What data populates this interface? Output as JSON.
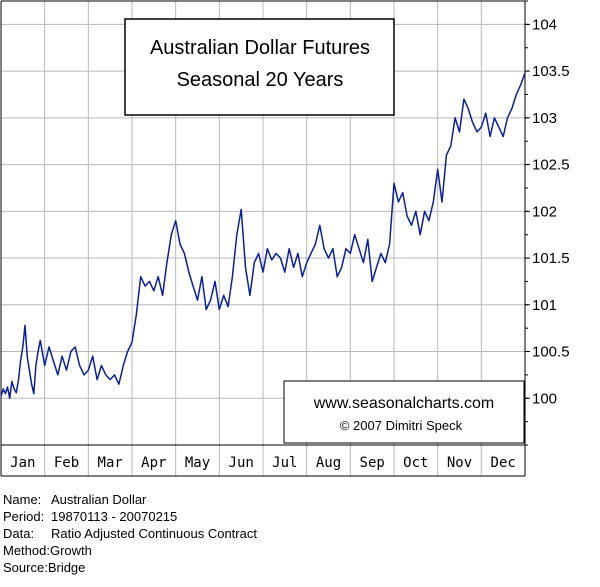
{
  "chart_data": {
    "type": "line",
    "title": [
      "Australian Dollar Futures",
      "Seasonal 20 Years"
    ],
    "watermark": [
      "www.seasonalcharts.com",
      "© 2007  Dimitri Speck"
    ],
    "categories": [
      "Jan",
      "Feb",
      "Mar",
      "Apr",
      "May",
      "Jun",
      "Jul",
      "Aug",
      "Sep",
      "Oct",
      "Nov",
      "Dec"
    ],
    "ylim": [
      99.5,
      104.25
    ],
    "yticks": [
      100,
      100.5,
      101,
      101.5,
      102,
      102.5,
      103,
      103.5,
      104
    ],
    "ytick_labels": [
      "100",
      "100.5",
      "101",
      "101.5",
      "102",
      "102.5",
      "103",
      "103.5",
      "104"
    ],
    "grid": true,
    "line_color": "#0a1ea0",
    "x": [
      0,
      0.05,
      0.1,
      0.15,
      0.2,
      0.25,
      0.3,
      0.35,
      0.4,
      0.45,
      0.5,
      0.55,
      0.6,
      0.65,
      0.7,
      0.75,
      0.8,
      0.85,
      0.9,
      0.95,
      1.0,
      1.1,
      1.2,
      1.3,
      1.4,
      1.5,
      1.6,
      1.7,
      1.8,
      1.9,
      2.0,
      2.1,
      2.2,
      2.3,
      2.4,
      2.5,
      2.6,
      2.7,
      2.8,
      2.9,
      3.0,
      3.1,
      3.2,
      3.3,
      3.4,
      3.5,
      3.6,
      3.7,
      3.8,
      3.9,
      4.0,
      4.1,
      4.2,
      4.3,
      4.4,
      4.5,
      4.6,
      4.7,
      4.8,
      4.9,
      5.0,
      5.1,
      5.2,
      5.3,
      5.4,
      5.5,
      5.6,
      5.7,
      5.8,
      5.9,
      6.0,
      6.1,
      6.2,
      6.3,
      6.4,
      6.5,
      6.6,
      6.7,
      6.8,
      6.9,
      7.0,
      7.1,
      7.2,
      7.3,
      7.4,
      7.5,
      7.6,
      7.7,
      7.8,
      7.9,
      8.0,
      8.1,
      8.2,
      8.3,
      8.4,
      8.5,
      8.6,
      8.7,
      8.8,
      8.9,
      9.0,
      9.1,
      9.2,
      9.3,
      9.4,
      9.5,
      9.6,
      9.7,
      9.8,
      9.9,
      10.0,
      10.1,
      10.2,
      10.3,
      10.4,
      10.5,
      10.6,
      10.7,
      10.8,
      10.9,
      11.0,
      11.1,
      11.2,
      11.3,
      11.4,
      11.5,
      11.6,
      11.7,
      11.8,
      11.9,
      12.0
    ],
    "y": [
      100.02,
      100.1,
      100.05,
      100.12,
      100.0,
      100.18,
      100.1,
      100.06,
      100.2,
      100.4,
      100.55,
      100.78,
      100.45,
      100.3,
      100.15,
      100.05,
      100.35,
      100.5,
      100.62,
      100.48,
      100.35,
      100.55,
      100.4,
      100.25,
      100.45,
      100.3,
      100.5,
      100.55,
      100.35,
      100.25,
      100.3,
      100.45,
      100.2,
      100.35,
      100.25,
      100.2,
      100.25,
      100.15,
      100.35,
      100.5,
      100.6,
      100.9,
      101.3,
      101.2,
      101.25,
      101.15,
      101.3,
      101.1,
      101.45,
      101.75,
      101.9,
      101.65,
      101.55,
      101.35,
      101.2,
      101.05,
      101.3,
      100.95,
      101.05,
      101.25,
      100.95,
      101.1,
      100.98,
      101.3,
      101.75,
      102.02,
      101.4,
      101.1,
      101.45,
      101.55,
      101.35,
      101.6,
      101.48,
      101.55,
      101.5,
      101.35,
      101.6,
      101.4,
      101.55,
      101.3,
      101.45,
      101.55,
      101.65,
      101.85,
      101.6,
      101.5,
      101.6,
      101.3,
      101.4,
      101.6,
      101.55,
      101.75,
      101.6,
      101.45,
      101.7,
      101.25,
      101.4,
      101.55,
      101.45,
      101.65,
      102.3,
      102.1,
      102.2,
      101.95,
      101.85,
      102.0,
      101.75,
      102.0,
      101.9,
      102.1,
      102.45,
      102.1,
      102.6,
      102.7,
      103.0,
      102.85,
      103.2,
      103.1,
      102.95,
      102.85,
      102.9,
      103.05,
      102.8,
      103.0,
      102.9,
      102.8,
      103.0,
      103.1,
      103.25,
      103.35,
      103.48
    ],
    "xlabel": "",
    "ylabel": ""
  },
  "info": {
    "rows": [
      {
        "key": "Name:",
        "value": "Australian Dollar"
      },
      {
        "key": "Period:",
        "value": "19870113 - 20070215"
      },
      {
        "key": "Data:",
        "value": "Ratio Adjusted Continuous Contract"
      },
      {
        "key": "Method:",
        "value": "Growth"
      },
      {
        "key": "Source:",
        "value": "Bridge"
      }
    ]
  }
}
